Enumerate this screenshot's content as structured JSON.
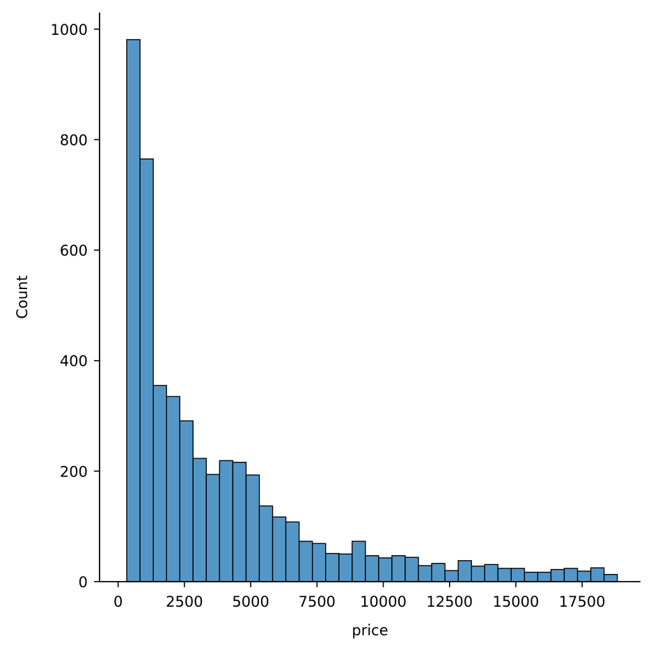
{
  "chart_data": {
    "type": "bar",
    "subtype": "histogram",
    "title": "",
    "xlabel": "price",
    "ylabel": "Count",
    "bar_color": "#5497c7",
    "edge_color": "#000000",
    "xlim": [
      -700,
      19700
    ],
    "ylim": [
      0,
      1030
    ],
    "xticks": [
      0,
      2500,
      5000,
      7500,
      10000,
      12500,
      15000,
      17500
    ],
    "xtick_labels": [
      "0",
      "2500",
      "5000",
      "7500",
      "10000",
      "12500",
      "15000",
      "17500"
    ],
    "yticks": [
      0,
      200,
      400,
      600,
      800,
      1000
    ],
    "ytick_labels": [
      "0",
      "200",
      "400",
      "600",
      "800",
      "1000"
    ],
    "bin_start": 326,
    "bin_width": 500,
    "values": [
      981,
      765,
      355,
      335,
      291,
      223,
      194,
      219,
      216,
      193,
      137,
      117,
      108,
      73,
      69,
      51,
      50,
      73,
      47,
      43,
      47,
      44,
      29,
      33,
      20,
      38,
      28,
      31,
      24,
      24,
      17,
      17,
      22,
      24,
      19,
      25,
      13
    ],
    "grid": false,
    "legend": "none"
  }
}
